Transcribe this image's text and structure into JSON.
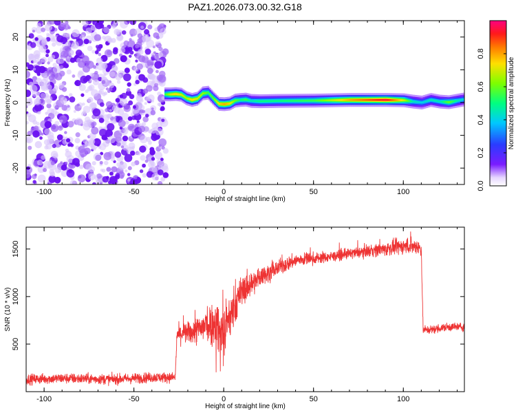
{
  "title": "PAZ1.2026.073.00.32.G18",
  "chart_data": [
    {
      "id": "spectrogram",
      "type": "heatmap",
      "xlabel": "Height of straight line (km)",
      "ylabel": "Frequency (Hz)",
      "xlim": [
        -110,
        134
      ],
      "ylim": [
        -25,
        25
      ],
      "xticks": [
        "-100",
        "-50",
        "0",
        "50",
        "100"
      ],
      "xtick_values": [
        -100,
        -50,
        0,
        50,
        100
      ],
      "yticks": [
        "-20",
        "-10",
        "0",
        "10",
        "20"
      ],
      "ytick_values": [
        -20,
        -10,
        0,
        10,
        20
      ],
      "noise_region_x": [
        -110,
        -32
      ],
      "ridge": {
        "x": [
          -33,
          -30,
          -27,
          -24,
          -21,
          -18,
          -15,
          -12,
          -9,
          -6,
          -3,
          0,
          3,
          6,
          9,
          12,
          15,
          20,
          30,
          50,
          70,
          90,
          100,
          105,
          110,
          115,
          120,
          125,
          130,
          134
        ],
        "freq": [
          2.5,
          2.5,
          2.6,
          2.4,
          1.3,
          0.8,
          1.2,
          2.8,
          3.0,
          1.2,
          -0.4,
          -0.5,
          -0.3,
          0.6,
          0.8,
          0.9,
          0.5,
          0.4,
          0.5,
          0.6,
          0.8,
          0.8,
          0.7,
          0.3,
          0.0,
          0.8,
          0.3,
          0.1,
          0.6,
          1.0
        ],
        "amp": [
          0.55,
          0.7,
          0.75,
          0.7,
          0.65,
          0.75,
          0.7,
          0.65,
          0.55,
          0.6,
          0.75,
          0.8,
          0.75,
          0.6,
          0.5,
          0.55,
          0.45,
          0.5,
          0.5,
          0.55,
          0.8,
          0.95,
          0.7,
          0.45,
          0.4,
          0.45,
          0.45,
          0.6,
          0.45,
          0.4
        ]
      }
    },
    {
      "id": "colorbar",
      "type": "colorbar",
      "label": "Normalized spectral amplitude",
      "ticks": [
        "0.0",
        "0.2",
        "0.4",
        "0.6",
        "0.8"
      ],
      "tick_values": [
        0.0,
        0.2,
        0.4,
        0.6,
        0.8
      ],
      "range": [
        0,
        1
      ]
    },
    {
      "id": "snr",
      "type": "line",
      "xlabel": "Height of straight line (km)",
      "ylabel": "SNR (10 * v/v)",
      "xlim": [
        -110,
        134
      ],
      "ylim": [
        0,
        1730
      ],
      "xticks": [
        "-100",
        "-50",
        "0",
        "50",
        "100"
      ],
      "xtick_values": [
        -100,
        -50,
        0,
        50,
        100
      ],
      "yticks": [
        "500",
        "1000",
        "1500"
      ],
      "ytick_values": [
        500,
        1000,
        1500
      ],
      "series_color": "#ee3333",
      "envelope": {
        "x": [
          -110,
          -90,
          -60,
          -40,
          -27,
          -26,
          -20,
          -15,
          -10,
          -5,
          0,
          5,
          10,
          20,
          30,
          40,
          50,
          60,
          70,
          80,
          90,
          100,
          108,
          110,
          111,
          115,
          125,
          134
        ],
        "mean": [
          130,
          140,
          130,
          150,
          150,
          600,
          620,
          640,
          700,
          720,
          600,
          850,
          1050,
          1200,
          1300,
          1380,
          1400,
          1420,
          1450,
          1480,
          1500,
          1530,
          1530,
          1500,
          650,
          650,
          680,
          680
        ],
        "amp": [
          60,
          60,
          60,
          60,
          60,
          110,
          120,
          160,
          220,
          260,
          350,
          220,
          180,
          110,
          90,
          80,
          70,
          60,
          60,
          70,
          80,
          90,
          90,
          80,
          50,
          50,
          50,
          50
        ]
      }
    }
  ]
}
